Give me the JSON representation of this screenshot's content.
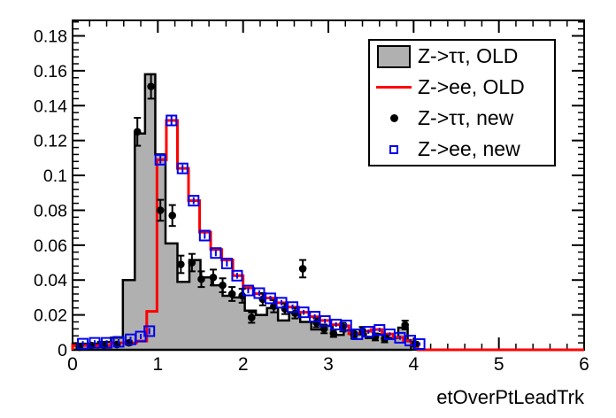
{
  "figure": {
    "background": "#ffffff",
    "frame_color": "#000000"
  },
  "chart_data": {
    "type": "histogram-overlay",
    "title": "",
    "xlabel": "etOverPtLeadTrk",
    "ylabel": "",
    "xlim": [
      0,
      6
    ],
    "ylim": [
      0,
      0.189
    ],
    "grid": false,
    "legend_position": "top-right",
    "x_tick_labels": [
      "0",
      "1",
      "2",
      "3",
      "4",
      "5",
      "6"
    ],
    "x_major_ticks": [
      0,
      1,
      2,
      3,
      4,
      5,
      6
    ],
    "x_minor_step": 0.2,
    "y_tick_labels": [
      "0",
      "0.02",
      "0.04",
      "0.06",
      "0.08",
      "0.1",
      "0.12",
      "0.14",
      "0.16",
      "0.18"
    ],
    "y_major_ticks": [
      0,
      0.02,
      0.04,
      0.06,
      0.08,
      0.1,
      0.12,
      0.14,
      0.16,
      0.18
    ],
    "y_minor_step": 0.004,
    "series": {
      "ztt_old": {
        "label": "Z->ττ, OLD",
        "style": "filled-step-histogram",
        "fill_color": "#b0b0b0",
        "line_color": "#000000",
        "edges": [
          0,
          0.3,
          0.45,
          0.59,
          0.73,
          0.85,
          0.97,
          1.09,
          1.23,
          1.37,
          1.5,
          1.63,
          1.76,
          1.89,
          2.02,
          2.15,
          2.28,
          2.41,
          2.54,
          2.67,
          2.8,
          2.92,
          3.05,
          3.18,
          3.31,
          3.44,
          3.57,
          3.7,
          3.82,
          3.93,
          3.97
        ],
        "values": [
          0.0035,
          0.0045,
          0.007,
          0.04,
          0.124,
          0.158,
          0.112,
          0.061,
          0.039,
          0.0515,
          0.0415,
          0.037,
          0.031,
          0.03,
          0.0225,
          0.02,
          0.0239,
          0.0168,
          0.0214,
          0.016,
          0.0117,
          0.0137,
          0.0086,
          0.0112,
          0.0091,
          0.0068,
          0.009,
          0.0068,
          0.0127,
          0.005
        ]
      },
      "zee_old": {
        "label": "Z->ee, OLD",
        "style": "step-histogram",
        "line_color": "#ff0000",
        "edges": [
          0,
          0.45,
          0.75,
          0.87,
          0.99,
          1.1,
          1.23,
          1.36,
          1.49,
          1.62,
          1.75,
          1.88,
          2.0,
          2.12,
          2.26,
          2.39,
          2.52,
          2.65,
          2.78,
          2.9,
          3.03,
          3.16,
          3.24,
          3.37,
          3.5,
          3.63,
          3.76,
          3.88,
          3.97,
          4.05
        ],
        "values": [
          0.0025,
          0.004,
          0.005,
          0.022,
          0.109,
          0.1315,
          0.104,
          0.0855,
          0.0675,
          0.0575,
          0.0515,
          0.0425,
          0.0355,
          0.0322,
          0.0297,
          0.027,
          0.0245,
          0.0215,
          0.019,
          0.0168,
          0.0144,
          0.0138,
          0.0092,
          0.0106,
          0.0116,
          0.0091,
          0.0071,
          0.0053,
          0.0033
        ]
      },
      "ztt_new": {
        "label": "Z->ττ, new",
        "style": "points",
        "marker": "filled-circle",
        "color": "#000000",
        "x": [
          0.08,
          0.22,
          0.37,
          0.52,
          0.66,
          0.76,
          0.92,
          1.03,
          1.17,
          1.27,
          1.4,
          1.51,
          1.65,
          1.76,
          1.87,
          1.99,
          2.1,
          2.23,
          2.36,
          2.49,
          2.61,
          2.7,
          2.86,
          2.95,
          3.06,
          3.17,
          3.3,
          3.4,
          3.55,
          3.66,
          3.9,
          4.02
        ],
        "y": [
          0.0015,
          0.0025,
          0.0025,
          0.003,
          0.004,
          0.125,
          0.151,
          0.08,
          0.077,
          0.049,
          0.05,
          0.0405,
          0.0415,
          0.037,
          0.032,
          0.031,
          0.0185,
          0.029,
          0.025,
          0.0235,
          0.021,
          0.0465,
          0.0155,
          0.012,
          0.0094,
          0.013,
          0.0084,
          0.0109,
          0.0074,
          0.0063,
          0.0142,
          0.0033
        ],
        "yerr": [
          0.001,
          0.001,
          0.001,
          0.001,
          0.0012,
          0.008,
          0.007,
          0.006,
          0.006,
          0.005,
          0.005,
          0.0045,
          0.0045,
          0.004,
          0.004,
          0.004,
          0.003,
          0.0035,
          0.0035,
          0.003,
          0.003,
          0.005,
          0.0025,
          0.0025,
          0.002,
          0.0025,
          0.002,
          0.0022,
          0.002,
          0.002,
          0.0025,
          0.0012
        ]
      },
      "zee_new": {
        "label": "Z->ee, new",
        "style": "points",
        "marker": "open-square",
        "color": "#0000ee",
        "x": [
          0.12,
          0.26,
          0.4,
          0.54,
          0.68,
          0.8,
          0.9,
          1.03,
          1.16,
          1.29,
          1.42,
          1.55,
          1.68,
          1.81,
          1.93,
          2.06,
          2.19,
          2.32,
          2.45,
          2.58,
          2.71,
          2.84,
          2.96,
          3.09,
          3.21,
          3.34,
          3.47,
          3.6,
          3.72,
          3.84,
          3.96,
          4.07
        ],
        "y": [
          0.0035,
          0.004,
          0.004,
          0.0046,
          0.006,
          0.0076,
          0.0107,
          0.109,
          0.1315,
          0.104,
          0.0855,
          0.0655,
          0.0555,
          0.0495,
          0.0425,
          0.034,
          0.0325,
          0.0295,
          0.027,
          0.0245,
          0.0215,
          0.019,
          0.0165,
          0.0145,
          0.014,
          0.0089,
          0.0104,
          0.0114,
          0.0089,
          0.0069,
          0.0053,
          0.0033
        ],
        "yerr": [
          0.0015,
          0.0015,
          0.0015,
          0.0015,
          0.0015,
          0.0015,
          0.0018,
          0.0022,
          0.0024,
          0.0022,
          0.002,
          0.0018,
          0.0018,
          0.0018,
          0.0017,
          0.0016,
          0.0016,
          0.0015,
          0.0015,
          0.0015,
          0.0014,
          0.0014,
          0.0013,
          0.0013,
          0.0013,
          0.0012,
          0.0012,
          0.0012,
          0.0011,
          0.0011,
          0.001,
          0.001
        ]
      }
    },
    "legend": {
      "items": [
        {
          "label": "Z->ττ, OLD",
          "swatch": "filled-box"
        },
        {
          "label": "Z->ee, OLD",
          "swatch": "line"
        },
        {
          "label": "Z->ττ, new",
          "swatch": "filled-circle"
        },
        {
          "label": "Z->ee, new",
          "swatch": "open-square"
        }
      ]
    }
  }
}
